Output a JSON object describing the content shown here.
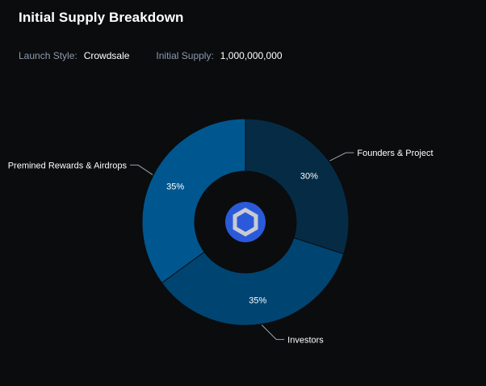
{
  "header": {
    "title": "Initial Supply Breakdown"
  },
  "meta": {
    "launch_style_label": "Launch Style:",
    "launch_style_value": "Crowdsale",
    "initial_supply_label": "Initial Supply:",
    "initial_supply_value": "1,000,000,000"
  },
  "center_icon": "chainlink-hexagon-icon",
  "colors": {
    "background": "#0b0c0e",
    "founders": "#062b45",
    "investors": "#004472",
    "premined": "#00578f",
    "icon_disc": "#2a5ada",
    "icon_hex": "#c9cbd1"
  },
  "chart_data": {
    "type": "pie",
    "variant": "donut",
    "title": "",
    "start_angle_deg": 0,
    "direction": "clockwise",
    "slices": [
      {
        "label": "Founders & Project",
        "value": 30,
        "value_label": "30%",
        "color": "#062b45"
      },
      {
        "label": "Investors",
        "value": 35,
        "value_label": "35%",
        "color": "#004472"
      },
      {
        "label": "Premined Rewards & Airdrops",
        "value": 35,
        "value_label": "35%",
        "color": "#00578f"
      }
    ]
  }
}
